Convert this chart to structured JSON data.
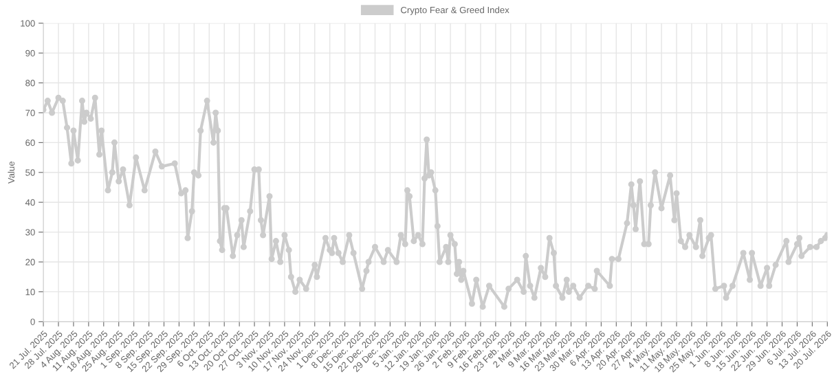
{
  "chart_data": {
    "type": "line",
    "ylabel": "Value",
    "legend": "top",
    "grid": true,
    "marker": "circle",
    "line_style": "solid",
    "ylim": [
      0,
      100
    ],
    "yticks": [
      0,
      10,
      20,
      30,
      40,
      50,
      60,
      70,
      80,
      90,
      100
    ],
    "xlim": [
      "2025-07-21",
      "2026-07-20"
    ],
    "xticks": [
      {
        "value": "2025-07-21",
        "label": "21 Jul. 2025"
      },
      {
        "value": "2025-07-28",
        "label": "28 Jul. 2025"
      },
      {
        "value": "2025-08-04",
        "label": "4 Aug. 2025"
      },
      {
        "value": "2025-08-11",
        "label": "11 Aug. 2025"
      },
      {
        "value": "2025-08-18",
        "label": "18 Aug. 2025"
      },
      {
        "value": "2025-08-25",
        "label": "25 Aug. 2025"
      },
      {
        "value": "2025-09-01",
        "label": "1 Sep. 2025"
      },
      {
        "value": "2025-09-08",
        "label": "8 Sep. 2025"
      },
      {
        "value": "2025-09-15",
        "label": "15 Sep. 2025"
      },
      {
        "value": "2025-09-22",
        "label": "22 Sep. 2025"
      },
      {
        "value": "2025-09-29",
        "label": "29 Sep. 2025"
      },
      {
        "value": "2025-10-06",
        "label": "6 Oct. 2025"
      },
      {
        "value": "2025-10-13",
        "label": "13 Oct. 2025"
      },
      {
        "value": "2025-10-20",
        "label": "20 Oct. 2025"
      },
      {
        "value": "2025-10-27",
        "label": "27 Oct. 2025"
      },
      {
        "value": "2025-11-03",
        "label": "3 Nov. 2025"
      },
      {
        "value": "2025-11-10",
        "label": "10 Nov. 2025"
      },
      {
        "value": "2025-11-17",
        "label": "17 Nov. 2025"
      },
      {
        "value": "2025-11-24",
        "label": "24 Nov. 2025"
      },
      {
        "value": "2025-12-01",
        "label": "1 Dec. 2025"
      },
      {
        "value": "2025-12-08",
        "label": "8 Dec. 2025"
      },
      {
        "value": "2025-12-15",
        "label": "15 Dec. 2025"
      },
      {
        "value": "2025-12-22",
        "label": "22 Dec. 2025"
      },
      {
        "value": "2025-12-29",
        "label": "29 Dec. 2025"
      },
      {
        "value": "2026-01-05",
        "label": "5 Jan. 2026"
      },
      {
        "value": "2026-01-12",
        "label": "12 Jan. 2026"
      },
      {
        "value": "2026-01-19",
        "label": "19 Jan. 2026"
      },
      {
        "value": "2026-01-26",
        "label": "26 Jan. 2026"
      },
      {
        "value": "2026-02-02",
        "label": "2 Feb. 2026"
      },
      {
        "value": "2026-02-09",
        "label": "9 Feb. 2026"
      },
      {
        "value": "2026-02-16",
        "label": "16 Feb. 2026"
      },
      {
        "value": "2026-02-23",
        "label": "23 Feb. 2026"
      },
      {
        "value": "2026-03-02",
        "label": "2 Mar. 2026"
      },
      {
        "value": "2026-03-09",
        "label": "9 Mar. 2026"
      },
      {
        "value": "2026-03-16",
        "label": "16 Mar. 2026"
      },
      {
        "value": "2026-03-23",
        "label": "23 Mar. 2026"
      },
      {
        "value": "2026-03-30",
        "label": "30 Mar. 2026"
      },
      {
        "value": "2026-04-06",
        "label": "6 Apr. 2026"
      },
      {
        "value": "2026-04-13",
        "label": "13 Apr. 2026"
      },
      {
        "value": "2026-04-20",
        "label": "20 Apr. 2026"
      },
      {
        "value": "2026-04-27",
        "label": "27 Apr. 2026"
      },
      {
        "value": "2026-05-04",
        "label": "4 May. 2026"
      },
      {
        "value": "2026-05-11",
        "label": "11 May. 2026"
      },
      {
        "value": "2026-05-18",
        "label": "18 May. 2026"
      },
      {
        "value": "2026-05-25",
        "label": "25 May. 2026"
      },
      {
        "value": "2026-06-01",
        "label": "1 Jun. 2026"
      },
      {
        "value": "2026-06-08",
        "label": "8 Jun. 2026"
      },
      {
        "value": "2026-06-15",
        "label": "15 Jun. 2026"
      },
      {
        "value": "2026-06-22",
        "label": "22 Jun. 2026"
      },
      {
        "value": "2026-06-29",
        "label": "29 Jun. 2026"
      },
      {
        "value": "2026-07-06",
        "label": "6 Jul. 2026"
      },
      {
        "value": "2026-07-13",
        "label": "13 Jul. 2026"
      },
      {
        "value": "2026-07-20",
        "label": "20 Jul. 2026"
      }
    ],
    "x": [
      "2025-07-21",
      "2025-07-23",
      "2025-07-25",
      "2025-07-28",
      "2025-07-30",
      "2025-08-01",
      "2025-08-03",
      "2025-08-04",
      "2025-08-06",
      "2025-08-08",
      "2025-08-09",
      "2025-08-10",
      "2025-08-12",
      "2025-08-14",
      "2025-08-16",
      "2025-08-17",
      "2025-08-20",
      "2025-08-22",
      "2025-08-23",
      "2025-08-25",
      "2025-08-27",
      "2025-08-30",
      "2025-09-02",
      "2025-09-06",
      "2025-09-11",
      "2025-09-14",
      "2025-09-20",
      "2025-09-23",
      "2025-09-25",
      "2025-09-26",
      "2025-09-28",
      "2025-09-29",
      "2025-10-01",
      "2025-10-02",
      "2025-10-05",
      "2025-10-08",
      "2025-10-09",
      "2025-10-10",
      "2025-10-11",
      "2025-10-12",
      "2025-10-13",
      "2025-10-14",
      "2025-10-17",
      "2025-10-19",
      "2025-10-21",
      "2025-10-22",
      "2025-10-25",
      "2025-10-27",
      "2025-10-29",
      "2025-10-30",
      "2025-10-31",
      "2025-11-03",
      "2025-11-04",
      "2025-11-06",
      "2025-11-08",
      "2025-11-10",
      "2025-11-12",
      "2025-11-13",
      "2025-11-15",
      "2025-11-17",
      "2025-11-20",
      "2025-11-24",
      "2025-11-25",
      "2025-11-29",
      "2025-12-01",
      "2025-12-02",
      "2025-12-03",
      "2025-12-05",
      "2025-12-07",
      "2025-12-10",
      "2025-12-12",
      "2025-12-16",
      "2025-12-18",
      "2025-12-19",
      "2025-12-22",
      "2025-12-26",
      "2025-12-28",
      "2026-01-01",
      "2026-01-03",
      "2026-01-05",
      "2026-01-06",
      "2026-01-07",
      "2026-01-09",
      "2026-01-11",
      "2026-01-13",
      "2026-01-14",
      "2026-01-15",
      "2026-01-16",
      "2026-01-17",
      "2026-01-19",
      "2026-01-20",
      "2026-01-21",
      "2026-01-24",
      "2026-01-25",
      "2026-01-26",
      "2026-01-28",
      "2026-01-29",
      "2026-01-30",
      "2026-01-31",
      "2026-02-01",
      "2026-02-05",
      "2026-02-07",
      "2026-02-10",
      "2026-02-13",
      "2026-02-20",
      "2026-02-22",
      "2026-02-26",
      "2026-03-01",
      "2026-03-02",
      "2026-03-04",
      "2026-03-06",
      "2026-03-09",
      "2026-03-11",
      "2026-03-13",
      "2026-03-15",
      "2026-03-16",
      "2026-03-19",
      "2026-03-21",
      "2026-03-22",
      "2026-03-24",
      "2026-03-27",
      "2026-03-31",
      "2026-04-03",
      "2026-04-04",
      "2026-04-10",
      "2026-04-11",
      "2026-04-14",
      "2026-04-18",
      "2026-04-20",
      "2026-04-21",
      "2026-04-22",
      "2026-04-24",
      "2026-04-26",
      "2026-04-28",
      "2026-04-29",
      "2026-05-01",
      "2026-05-04",
      "2026-05-08",
      "2026-05-10",
      "2026-05-11",
      "2026-05-13",
      "2026-05-15",
      "2026-05-17",
      "2026-05-20",
      "2026-05-22",
      "2026-05-23",
      "2026-05-26",
      "2026-05-27",
      "2026-05-29",
      "2026-06-02",
      "2026-06-03",
      "2026-06-06",
      "2026-06-11",
      "2026-06-14",
      "2026-06-15",
      "2026-06-19",
      "2026-06-22",
      "2026-06-23",
      "2026-06-26",
      "2026-07-01",
      "2026-07-02",
      "2026-07-06",
      "2026-07-07",
      "2026-07-08",
      "2026-07-12",
      "2026-07-15",
      "2026-07-17",
      "2026-07-19",
      "2026-07-20"
    ],
    "series": [
      {
        "name": "Crypto Fear & Greed Index",
        "color": "#cccccc",
        "values": [
          71,
          74,
          70,
          75,
          74,
          65,
          53,
          64,
          54,
          74,
          67,
          70,
          68,
          75,
          56,
          64,
          44,
          50,
          60,
          47,
          51,
          39,
          55,
          44,
          57,
          52,
          53,
          43,
          44,
          28,
          37,
          50,
          49,
          64,
          74,
          60,
          70,
          64,
          27,
          24,
          38,
          38,
          22,
          29,
          34,
          25,
          37,
          51,
          51,
          34,
          29,
          42,
          21,
          27,
          20,
          29,
          24,
          15,
          10,
          14,
          11,
          19,
          15,
          28,
          24,
          23,
          28,
          23,
          20,
          29,
          23,
          11,
          17,
          20,
          25,
          20,
          24,
          20,
          29,
          26,
          44,
          42,
          27,
          29,
          26,
          48,
          61,
          49,
          50,
          44,
          32,
          20,
          25,
          20,
          29,
          26,
          16,
          20,
          14,
          17,
          6,
          14,
          5,
          12,
          5,
          11,
          14,
          10,
          22,
          12,
          8,
          18,
          15,
          28,
          23,
          12,
          8,
          14,
          10,
          12,
          8,
          12,
          11,
          17,
          12,
          21,
          21,
          33,
          46,
          39,
          31,
          47,
          26,
          26,
          39,
          50,
          38,
          49,
          34,
          43,
          27,
          25,
          29,
          25,
          34,
          22,
          28,
          29,
          11,
          12,
          8,
          12,
          23,
          14,
          23,
          12,
          18,
          12,
          19,
          27,
          20,
          26,
          28,
          22,
          25,
          25,
          27,
          28,
          29
        ]
      }
    ]
  }
}
